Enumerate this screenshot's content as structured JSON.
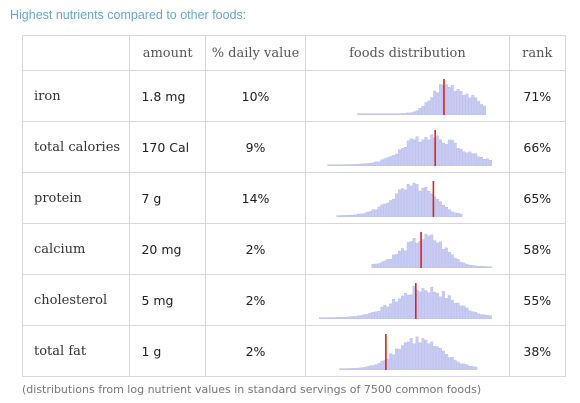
{
  "header": {
    "title": "Highest nutrients compared to other foods:"
  },
  "table": {
    "columns": {
      "name": "",
      "amount": "amount",
      "daily_value": "% daily value",
      "distribution": "foods distribution",
      "rank": "rank"
    },
    "rows": [
      {
        "name": "iron",
        "amount": "1.8 mg",
        "daily_value": "10%",
        "rank": "71%"
      },
      {
        "name": "total calories",
        "amount": "170 Cal",
        "daily_value": "9%",
        "rank": "66%"
      },
      {
        "name": "protein",
        "amount": "7 g",
        "daily_value": "14%",
        "rank": "65%"
      },
      {
        "name": "calcium",
        "amount": "20 mg",
        "daily_value": "2%",
        "rank": "58%"
      },
      {
        "name": "cholesterol",
        "amount": "5 mg",
        "daily_value": "2%",
        "rank": "55%"
      },
      {
        "name": "total fat",
        "amount": "1 g",
        "daily_value": "2%",
        "rank": "38%"
      }
    ]
  },
  "footer": {
    "note": "(distributions from log nutrient values in standard servings of 7500 common foods)"
  },
  "colors": {
    "header_text": "#6aa6c7",
    "histogram_fill": "#c8ccf2",
    "histogram_stroke": "#a9afe8",
    "marker": "#e0201b",
    "grid_border": "#d8d8d8"
  },
  "distribution": {
    "bins": 60,
    "note": "marker position equals food's rank percentile within the distribution",
    "shapes": [
      {
        "row": 0,
        "center": 0.72,
        "spread": 0.11,
        "skew": -0.6,
        "start": 0.22,
        "end": 0.95
      },
      {
        "row": 1,
        "center": 0.62,
        "spread": 0.16,
        "skew": -0.3,
        "start": 0.05,
        "end": 0.98
      },
      {
        "row": 2,
        "center": 0.55,
        "spread": 0.12,
        "skew": 0.2,
        "start": 0.1,
        "end": 0.82
      },
      {
        "row": 3,
        "center": 0.62,
        "spread": 0.12,
        "skew": 0.3,
        "start": 0.3,
        "end": 0.98
      },
      {
        "row": 4,
        "center": 0.6,
        "spread": 0.16,
        "skew": 0.0,
        "start": 0.0,
        "end": 0.98
      },
      {
        "row": 5,
        "center": 0.55,
        "spread": 0.13,
        "skew": -0.2,
        "start": 0.12,
        "end": 0.9
      }
    ]
  }
}
